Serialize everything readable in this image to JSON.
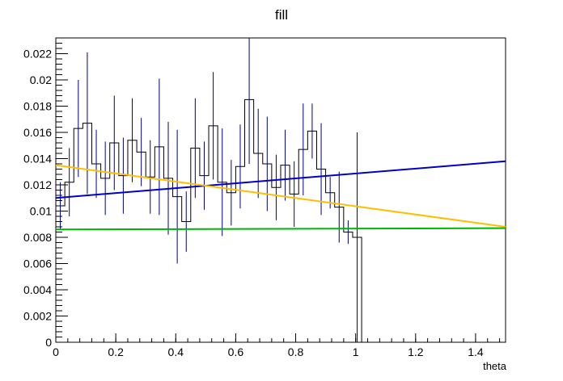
{
  "chart_data": {
    "type": "histogram",
    "title": "fill",
    "xlabel": "theta",
    "ylabel": "",
    "xlim": [
      0,
      1.5
    ],
    "ylim": [
      0,
      0.0232
    ],
    "x_ticks": [
      "0",
      "0.2",
      "0.4",
      "0.6",
      "0.8",
      "1",
      "1.2",
      "1.4"
    ],
    "y_ticks": [
      "0",
      "0.002",
      "0.004",
      "0.006",
      "0.008",
      "0.01",
      "0.012",
      "0.014",
      "0.016",
      "0.018",
      "0.02",
      "0.022"
    ],
    "histogram": {
      "bin_width": 0.03,
      "bin_start": 0,
      "values": [
        0.0104,
        0.0122,
        0.0163,
        0.0167,
        0.0136,
        0.0125,
        0.0152,
        0.0127,
        0.0154,
        0.0145,
        0.0126,
        0.0149,
        0.0125,
        0.0111,
        0.0092,
        0.0148,
        0.0127,
        0.0165,
        0.0122,
        0.0114,
        0.0134,
        0.0185,
        0.0144,
        0.0136,
        0.0118,
        0.0135,
        0.0113,
        0.0147,
        0.0161,
        0.0132,
        0.0114,
        0.0103,
        0.0084,
        0.008,
        0.0
      ],
      "errors": [
        0.0018,
        0.0026,
        0.0037,
        0.0054,
        0.0026,
        0.0028,
        0.0036,
        0.0029,
        0.0032,
        0.0026,
        0.0028,
        0.0052,
        0.0043,
        0.0051,
        0.0023,
        0.0038,
        0.0026,
        0.0041,
        0.0041,
        0.0025,
        0.0032,
        0.0049,
        0.0034,
        0.0036,
        0.0025,
        0.0027,
        0.0025,
        0.0035,
        0.0021,
        0.0035,
        0.0012,
        0.0027,
        0.0009,
        0.008,
        0.0
      ],
      "color": "#000080"
    },
    "series": [
      {
        "x": [
          0,
          1.5
        ],
        "y": [
          0.011,
          0.0138
        ],
        "color": "#0000c8"
      },
      {
        "x": [
          0,
          1.5
        ],
        "y": [
          0.0135,
          0.0088
        ],
        "color": "#ffbf00"
      },
      {
        "x": [
          0,
          1.5
        ],
        "y": [
          0.0086,
          0.0087
        ],
        "color": "#00b400"
      }
    ]
  }
}
